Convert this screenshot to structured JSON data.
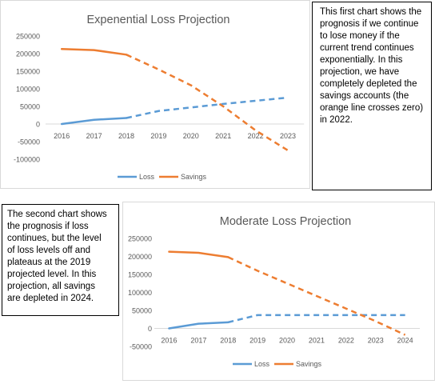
{
  "chart_data": [
    {
      "type": "line",
      "title": "Expenential Loss Projection",
      "x": [
        "2016",
        "2017",
        "2018",
        "2019",
        "2020",
        "2021",
        "2022",
        "2023"
      ],
      "ylim": [
        -100000,
        250000
      ],
      "yticks": [
        250000,
        200000,
        150000,
        100000,
        50000,
        0,
        -50000,
        -100000
      ],
      "ytick_labels": [
        "250000",
        "200000",
        "150000",
        "100000",
        "50000",
        "0",
        "-50000",
        "-100000"
      ],
      "actual_through": "2018",
      "series": [
        {
          "name": "Loss",
          "color": "#5b9bd5",
          "values": [
            0,
            12000,
            17000,
            37000,
            47000,
            57000,
            66000,
            75000
          ]
        },
        {
          "name": "Savings",
          "color": "#ed7d31",
          "values": [
            213000,
            210000,
            197000,
            155000,
            110000,
            50000,
            -18000,
            -75000
          ]
        }
      ],
      "grid": false,
      "legend": "bottom"
    },
    {
      "type": "line",
      "title": "Moderate Loss Projection",
      "x": [
        "2016",
        "2017",
        "2018",
        "2019",
        "2020",
        "2021",
        "2022",
        "2023",
        "2024"
      ],
      "ylim": [
        -50000,
        250000
      ],
      "yticks": [
        250000,
        200000,
        150000,
        100000,
        50000,
        0,
        -50000
      ],
      "ytick_labels": [
        "250000",
        "200000",
        "150000",
        "100000",
        "50000",
        "0",
        "-50000"
      ],
      "actual_through": "2018",
      "series": [
        {
          "name": "Loss",
          "color": "#5b9bd5",
          "values": [
            0,
            13000,
            17000,
            37000,
            37000,
            37000,
            37000,
            37000,
            37000
          ]
        },
        {
          "name": "Savings",
          "color": "#ed7d31",
          "values": [
            213000,
            210000,
            198000,
            160000,
            125000,
            90000,
            55000,
            20000,
            -18000
          ]
        }
      ],
      "grid": false,
      "legend": "bottom"
    }
  ],
  "notes": {
    "note1_lines": [
      "This first chart shows the",
      "prognosis if we continue",
      "to lose money if the",
      "current trend continues",
      "exponentially. In this",
      "projection, we have",
      "completely depleted the",
      "savings accounts (the",
      "orange line crosses zero)",
      "in 2022."
    ],
    "note2_lines": [
      "The second chart shows",
      "the prognosis if loss",
      "continues, but the level",
      "of loss levels off and",
      "plateaus at the 2019",
      "projected level. In this",
      "projection, all savings",
      "are depleted in 2024."
    ]
  }
}
